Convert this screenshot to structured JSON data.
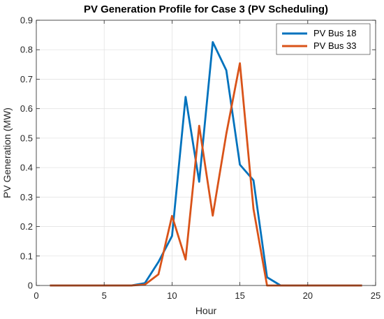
{
  "chart_data": {
    "type": "line",
    "title": "PV Generation Profile for Case 3 (PV Scheduling)",
    "xlabel": "Hour",
    "ylabel": "PV Generation (MW)",
    "xlim": [
      0,
      25
    ],
    "ylim": [
      0,
      0.9
    ],
    "xticks": [
      0,
      5,
      10,
      15,
      20,
      25
    ],
    "yticks": [
      0,
      0.1,
      0.2,
      0.3,
      0.4,
      0.5,
      0.6,
      0.7,
      0.8,
      0.9
    ],
    "grid": true,
    "legend_position": "top-right",
    "x": [
      1,
      2,
      3,
      4,
      5,
      6,
      7,
      8,
      9,
      10,
      11,
      12,
      13,
      14,
      15,
      16,
      17,
      18,
      19,
      20,
      21,
      22,
      23,
      24
    ],
    "series": [
      {
        "name": "PV Bus 18",
        "color": "#0072BD",
        "values": [
          0,
          0,
          0,
          0,
          0,
          0,
          0,
          0.008,
          0.08,
          0.168,
          0.64,
          0.352,
          0.826,
          0.73,
          0.41,
          0.357,
          0.028,
          0,
          0,
          0,
          0,
          0,
          0,
          0
        ]
      },
      {
        "name": "PV Bus 33",
        "color": "#D95319",
        "values": [
          0,
          0,
          0,
          0,
          0,
          0,
          0,
          0.003,
          0.038,
          0.236,
          0.088,
          0.542,
          0.237,
          0.515,
          0.754,
          0.26,
          0,
          0,
          0,
          0,
          0,
          0,
          0,
          0
        ]
      }
    ]
  }
}
